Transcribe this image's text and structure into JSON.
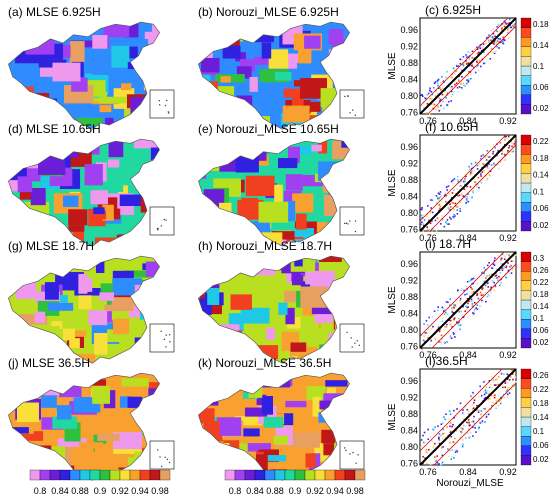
{
  "panel_titles": [
    [
      "(a) MLSE 6.925H",
      "(b) Norouzi_MLSE  6.925H",
      "(c) 6.925H"
    ],
    [
      "(d) MLSE 10.65H",
      "(e) Norouzi_MLSE  10.65H",
      "(f) 10.65H"
    ],
    [
      "(g) MLSE 18.7H",
      "(h) Norouzi_MLSE  18.7H",
      "(i) 18.7H"
    ],
    [
      "(j) MLSE 36.5H",
      "(k) Norouzi_MLSE  36.5H",
      "(l)36.5H"
    ]
  ],
  "map_colorbar": {
    "labels": [
      "0.8",
      "0.84",
      "0.88",
      "0.9",
      "0.92",
      "0.94",
      "0.98"
    ],
    "colors": [
      "#ee99ee",
      "#a040f0",
      "#6a1ed8",
      "#3020e0",
      "#2f8cff",
      "#20c8e8",
      "#20d8a0",
      "#30c040",
      "#b8e020",
      "#f8e038",
      "#f8a030",
      "#f04020",
      "#c01818",
      "#e8a060"
    ]
  },
  "scatter_colors": [
    "#5a10c8",
    "#3030ff",
    "#2a90ff",
    "#58d8ff",
    "#bfe8f0",
    "#f0e0a0",
    "#ffd040",
    "#ff9a20",
    "#ff4a20",
    "#d80000"
  ],
  "scatter": {
    "xlabel": "MLSE",
    "bottom_xlabel": "Norouzi_MLSE",
    "x_ticks": [
      "0.76",
      "0.84",
      "0.92"
    ],
    "y_ticks": [
      "0.96",
      "0.92",
      "0.88",
      "0.84",
      "0.80",
      "0.76"
    ],
    "cbar_labels": [
      [
        "0.18",
        "0.14",
        "0.1",
        "0.06",
        "0.02"
      ],
      [
        "0.22",
        "0.18",
        "0.14",
        "0.1",
        "0.06",
        "0.02"
      ],
      [
        "0.3",
        "0.26",
        "0.22",
        "0.18",
        "0.14",
        "0.1",
        "0.06",
        "0.02"
      ],
      [
        "0.26",
        "0.22",
        "0.18",
        "0.14",
        "0.1",
        "0.06",
        "0.02"
      ]
    ]
  }
}
